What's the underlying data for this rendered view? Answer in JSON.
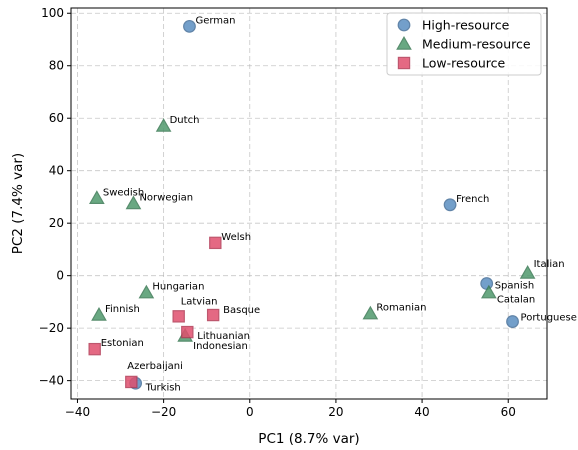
{
  "chart_data": {
    "type": "scatter",
    "title": "",
    "xlabel": "PC1 (8.7% var)",
    "ylabel": "PC2 (7.4% var)",
    "xlim": [
      -41.5,
      69
    ],
    "ylim": [
      -47,
      102
    ],
    "xticks": [
      -40,
      -20,
      0,
      20,
      40,
      60
    ],
    "yticks": [
      -40,
      -20,
      0,
      20,
      40,
      60,
      80,
      100
    ],
    "grid": true,
    "legend_position": "top-right",
    "series": [
      {
        "name": "High-resource",
        "marker": "circle",
        "color": "#5b8fc1",
        "edge": "#466f99",
        "points": [
          {
            "label": "German",
            "x": -14,
            "y": 95
          },
          {
            "label": "French",
            "x": 46.5,
            "y": 27
          },
          {
            "label": "Spanish",
            "x": 55,
            "y": -3
          },
          {
            "label": "Portuguese",
            "x": 61,
            "y": -17.5
          },
          {
            "label": "Turkish",
            "x": -26.5,
            "y": -41
          }
        ]
      },
      {
        "name": "Medium-resource",
        "marker": "triangle",
        "color": "#4f9a6d",
        "edge": "#3c7a55",
        "points": [
          {
            "label": "Dutch",
            "x": -20,
            "y": 57
          },
          {
            "label": "Swedish",
            "x": -35.5,
            "y": 29.5
          },
          {
            "label": "Norwegian",
            "x": -27,
            "y": 27.5
          },
          {
            "label": "Italian",
            "x": 64.5,
            "y": 1
          },
          {
            "label": "Catalan",
            "x": 55.5,
            "y": -6.5
          },
          {
            "label": "Hungarian",
            "x": -24,
            "y": -6.5
          },
          {
            "label": "Finnish",
            "x": -35,
            "y": -15
          },
          {
            "label": "Romanian",
            "x": 28,
            "y": -14.5
          },
          {
            "label": "Indonesian",
            "x": -15,
            "y": -23
          }
        ]
      },
      {
        "name": "Low-resource",
        "marker": "square",
        "color": "#e0506e",
        "edge": "#b33a55",
        "points": [
          {
            "label": "Welsh",
            "x": -8,
            "y": 12.5
          },
          {
            "label": "Latvian",
            "x": -16.5,
            "y": -15.5
          },
          {
            "label": "Basque",
            "x": -8.5,
            "y": -15
          },
          {
            "label": "Lithuanian",
            "x": -14.5,
            "y": -21.5
          },
          {
            "label": "Estonian",
            "x": -36,
            "y": -28
          },
          {
            "label": "Azerbaijani",
            "x": -27.5,
            "y": -40.5
          }
        ]
      }
    ]
  }
}
